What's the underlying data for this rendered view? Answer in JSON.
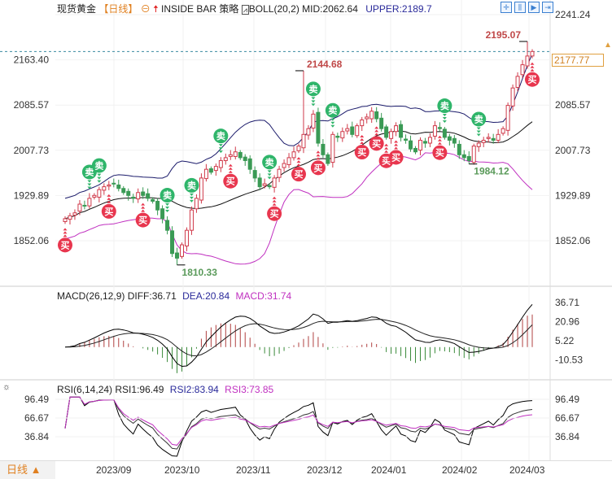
{
  "header": {
    "symbol": "现货黄金",
    "period": "【日线】",
    "strategy": "INSIDE BAR 策略",
    "boll_label": "BOLL(20,2)",
    "boll_mid": "MID:2062.64",
    "boll_upper": "UPPER:2189.7"
  },
  "macd_header": {
    "label": "MACD(26,12,9)",
    "diff": "DIFF:36.71",
    "dea": "DEA:20.84",
    "macd": "MACD:31.74"
  },
  "rsi_header": {
    "label": "RSI(6,14,24)",
    "rsi1": "RSI1:96.49",
    "rsi2": "RSI2:83.94",
    "rsi3": "RSI3:73.85"
  },
  "bottom": {
    "period_button": "日线 ▲"
  },
  "last_price": "2177.77",
  "colors": {
    "up": "#d03a4a",
    "down": "#3a9a55",
    "upper": "#1a1a6a",
    "mid": "#111111",
    "lower": "#c030c0",
    "buy": "#e8364e",
    "sell": "#2fb56a",
    "last": "#e0a040"
  },
  "chart_data": {
    "type": "candlestick",
    "price_axis": {
      "ticks": [
        "2241.24",
        "2163.40",
        "2085.57",
        "2007.73",
        "1929.89",
        "1852.06"
      ],
      "ylim": [
        1790,
        2241.24
      ]
    },
    "macd_axis": {
      "ticks": [
        "36.71",
        "20.96",
        "5.22",
        "-10.53"
      ]
    },
    "rsi_axis": {
      "ticks": [
        "96.49",
        "66.67",
        "36.84"
      ]
    },
    "x_ticks": [
      "2023/09",
      "2023/10",
      "2023/11",
      "2023/12",
      "2024/01",
      "2024/02",
      "2024/03"
    ],
    "closes": [
      1890,
      1895,
      1900,
      1915,
      1912,
      1925,
      1930,
      1940,
      1945,
      1948,
      1950,
      1942,
      1935,
      1930,
      1925,
      1935,
      1930,
      1925,
      1920,
      1905,
      1890,
      1870,
      1830,
      1822,
      1845,
      1870,
      1905,
      1925,
      1960,
      1975,
      1970,
      1980,
      1990,
      1995,
      2000,
      2005,
      1995,
      1990,
      1975,
      1960,
      1945,
      1950,
      1945,
      1960,
      1975,
      1985,
      1995,
      2005,
      2015,
      2035,
      2045,
      2070,
      2020,
      2000,
      1985,
      2035,
      2030,
      2040,
      2045,
      2035,
      2050,
      2060,
      2065,
      2075,
      2062,
      2045,
      2030,
      2040,
      2050,
      2030,
      2025,
      2010,
      2005,
      2025,
      2020,
      2030,
      2050,
      2045,
      2030,
      2025,
      2020,
      2000,
      1995,
      1990,
      2015,
      2020,
      2025,
      2030,
      2025,
      2035,
      2045,
      2085,
      2115,
      2135,
      2155,
      2170,
      2177.77
    ],
    "annotations": [
      {
        "label": "2144.68",
        "index": 49,
        "value": 2144.68,
        "kind": "high"
      },
      {
        "label": "1810.33",
        "index": 23,
        "value": 1810.33,
        "kind": "low"
      },
      {
        "label": "1984.12",
        "index": 83,
        "value": 1984.12,
        "kind": "low"
      },
      {
        "label": "2195.07",
        "index": 95,
        "value": 2195.07,
        "kind": "high"
      }
    ],
    "signals": [
      {
        "index": 0,
        "type": "buy",
        "text": "买"
      },
      {
        "index": 5,
        "type": "sell",
        "text": "卖"
      },
      {
        "index": 7,
        "type": "sell",
        "text": "卖"
      },
      {
        "index": 9,
        "type": "buy",
        "text": "买"
      },
      {
        "index": 16,
        "type": "buy",
        "text": "买"
      },
      {
        "index": 21,
        "type": "sell",
        "text": "卖"
      },
      {
        "index": 26,
        "type": "sell",
        "text": "卖"
      },
      {
        "index": 32,
        "type": "sell",
        "text": "卖"
      },
      {
        "index": 34,
        "type": "buy",
        "text": "买"
      },
      {
        "index": 42,
        "type": "sell",
        "text": "卖"
      },
      {
        "index": 43,
        "type": "buy",
        "text": "买"
      },
      {
        "index": 48,
        "type": "buy",
        "text": "买"
      },
      {
        "index": 51,
        "type": "sell",
        "text": "卖"
      },
      {
        "index": 52,
        "type": "buy",
        "text": "买"
      },
      {
        "index": 55,
        "type": "sell",
        "text": "卖"
      },
      {
        "index": 61,
        "type": "buy",
        "text": "买"
      },
      {
        "index": 64,
        "type": "buy",
        "text": "买"
      },
      {
        "index": 66,
        "type": "buy",
        "text": "买"
      },
      {
        "index": 68,
        "type": "buy",
        "text": "买"
      },
      {
        "index": 77,
        "type": "buy",
        "text": "买"
      },
      {
        "index": 78,
        "type": "sell",
        "text": "卖"
      },
      {
        "index": 85,
        "type": "sell",
        "text": "卖"
      },
      {
        "index": 96,
        "type": "buy",
        "text": "买"
      }
    ]
  }
}
